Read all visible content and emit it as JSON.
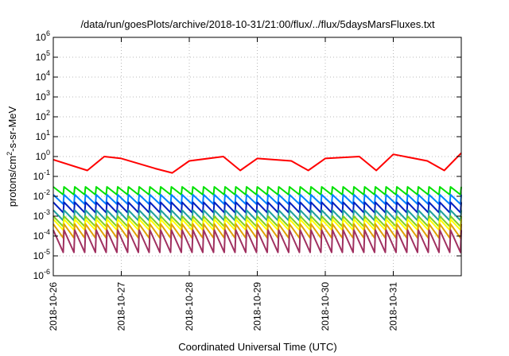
{
  "chart_data": {
    "type": "line",
    "title": "/data/run/goesPlots/archive/2018-10-31/21:00/flux/../flux/5daysMarsFluxes.txt",
    "xlabel": "Coordinated Universal Time (UTC)",
    "ylabel_parts": [
      "protons/cm",
      "2",
      "-s-sr-MeV"
    ],
    "ylabel": "protons/cm2-s-sr-MeV",
    "y_scale": "log",
    "ylim_exp": [
      -6,
      6
    ],
    "y_ticks": [
      {
        "exp": -6,
        "base": "10",
        "sup": "-6"
      },
      {
        "exp": -5,
        "base": "10",
        "sup": "-5"
      },
      {
        "exp": -4,
        "base": "10",
        "sup": "-4"
      },
      {
        "exp": -3,
        "base": "10",
        "sup": "-3"
      },
      {
        "exp": -2,
        "base": "10",
        "sup": "-2"
      },
      {
        "exp": -1,
        "base": "10",
        "sup": "-1"
      },
      {
        "exp": 0,
        "base": "10",
        "sup": "0"
      },
      {
        "exp": 1,
        "base": "10",
        "sup": "1"
      },
      {
        "exp": 2,
        "base": "10",
        "sup": "2"
      },
      {
        "exp": 3,
        "base": "10",
        "sup": "3"
      },
      {
        "exp": 4,
        "base": "10",
        "sup": "4"
      },
      {
        "exp": 5,
        "base": "10",
        "sup": "5"
      },
      {
        "exp": 6,
        "base": "10",
        "sup": "6"
      }
    ],
    "x_ticks": [
      "2018-10-26",
      "2018-10-27",
      "2018-10-28",
      "2018-10-29",
      "2018-10-30",
      "2018-10-31"
    ],
    "xlim": [
      "2018-10-26",
      "2018-11-01"
    ],
    "grid": true,
    "legend": "none",
    "series": [
      {
        "color": "#ff0000",
        "x": [
          "2018-10-26",
          "2018-10-26 12:00",
          "2018-10-26 18:00",
          "2018-10-27",
          "2018-10-27 12:00",
          "2018-10-27 18:00",
          "2018-10-28",
          "2018-10-28 12:00",
          "2018-10-28 18:00",
          "2018-10-29",
          "2018-10-29 12:00",
          "2018-10-29 18:00",
          "2018-10-30",
          "2018-10-30 12:00",
          "2018-10-30 18:00",
          "2018-10-31",
          "2018-10-31 12:00",
          "2018-10-31 18:00",
          "2018-11-01"
        ],
        "values": [
          0.7,
          0.2,
          1.0,
          0.8,
          0.25,
          0.15,
          0.6,
          1.0,
          0.2,
          0.8,
          0.6,
          0.2,
          0.8,
          1.0,
          0.2,
          1.3,
          0.6,
          0.2,
          1.5
        ]
      },
      {
        "color": "#00e000",
        "pattern": "sawtooth",
        "high": 0.03,
        "low": 0.012
      },
      {
        "color": "#0080ff",
        "pattern": "sawtooth",
        "high": 0.012,
        "low": 0.004
      },
      {
        "color": "#0020c0",
        "pattern": "sawtooth",
        "high": 0.005,
        "low": 0.0015
      },
      {
        "color": "#20a0a0",
        "pattern": "sawtooth",
        "high": 0.002,
        "low": 0.0006
      },
      {
        "color": "#80d020",
        "pattern": "sawtooth",
        "high": 0.001,
        "low": 0.0003
      },
      {
        "color": "#ffff00",
        "pattern": "sawtooth",
        "high": 0.0007,
        "low": 0.0002
      },
      {
        "color": "#e0a000",
        "pattern": "sawtooth",
        "high": 0.0004,
        "low": 8e-05
      },
      {
        "color": "#a03060",
        "pattern": "sawtooth",
        "high": 0.0002,
        "low": 1.5e-05
      }
    ],
    "colors": {
      "grid": "#b8b8b8",
      "axis": "#000000"
    }
  }
}
